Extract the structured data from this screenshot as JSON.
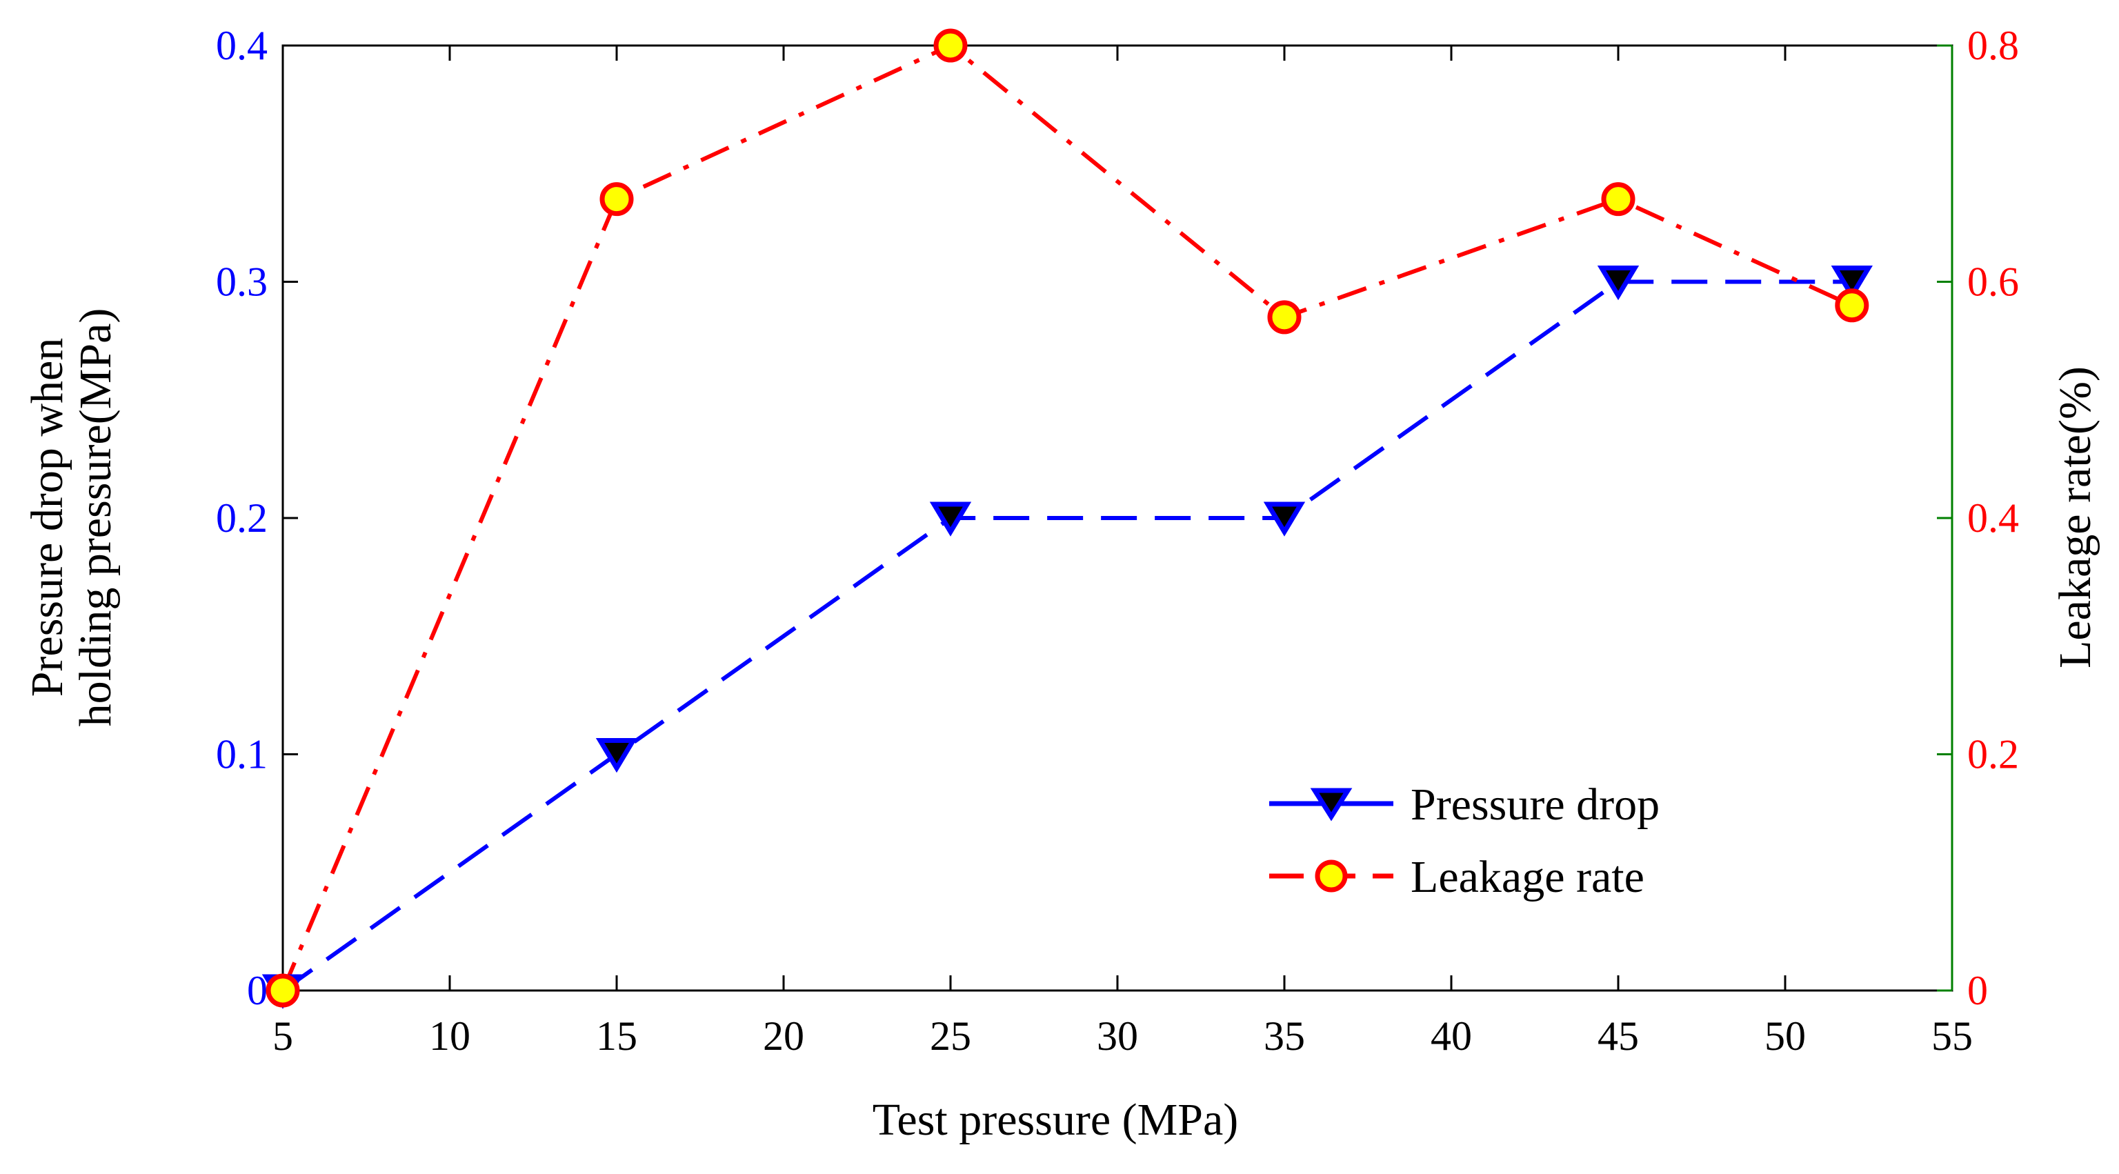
{
  "chart_data": {
    "type": "line",
    "x": [
      5,
      15,
      25,
      35,
      45,
      52
    ],
    "xlabel": "Test pressure (MPa)",
    "ylabel_left": [
      "Pressure drop when",
      "holding pressure(MPa)"
    ],
    "ylabel_right": "Leakage rate(%)",
    "xlim": [
      5,
      55
    ],
    "ylim_left": [
      0,
      0.4
    ],
    "ylim_right": [
      0,
      0.8
    ],
    "xticks": [
      5,
      10,
      15,
      20,
      25,
      30,
      35,
      40,
      45,
      50,
      55
    ],
    "xtick_labels": [
      "5",
      "10",
      "15",
      "20",
      "25",
      "30",
      "35",
      "40",
      "45",
      "50",
      "55"
    ],
    "yticks_left": [
      0,
      0.1,
      0.2,
      0.3,
      0.4
    ],
    "ytick_labels_left": [
      "0",
      "0.1",
      "0.2",
      "0.3",
      "0.4"
    ],
    "yticks_right": [
      0,
      0.2,
      0.4,
      0.6,
      0.8
    ],
    "ytick_labels_right": [
      "0",
      "0.2",
      "0.4",
      "0.6",
      "0.8"
    ],
    "grid": false,
    "legend_position": "bottom-right",
    "series": [
      {
        "name": "Pressure drop",
        "axis": "left",
        "values": [
          0,
          0.1,
          0.2,
          0.2,
          0.3,
          0.3
        ],
        "line_color": "#0000ff",
        "marker_fill": "#000000",
        "marker_edge": "#0000ff",
        "marker": "down-triangle",
        "line_style": "dashed"
      },
      {
        "name": "Leakage rate",
        "axis": "right",
        "values": [
          0,
          0.67,
          0.8,
          0.57,
          0.67,
          0.58
        ],
        "line_color": "#ff0000",
        "marker_fill": "#ffff00",
        "marker_edge": "#ff0000",
        "marker": "circle",
        "line_style": "dash-dot"
      }
    ],
    "colors": {
      "left_axis_text": "#0000ff",
      "right_axis_text": "#ff0000",
      "right_axis_ticks": "#008000",
      "axis_frame": "#000000"
    }
  }
}
